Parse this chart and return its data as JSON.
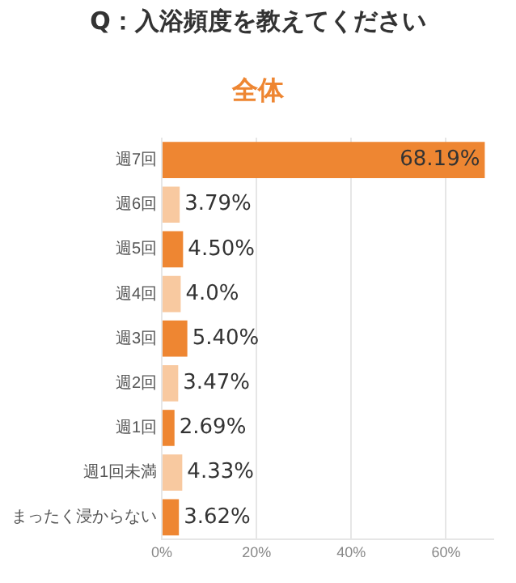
{
  "chart_data": {
    "type": "bar",
    "orientation": "horizontal",
    "title": "Q：入浴頻度を教えてください",
    "subtitle": "全体",
    "categories": [
      "週7回",
      "週6回",
      "週5回",
      "週4回",
      "週3回",
      "週2回",
      "週1回",
      "週1回未満",
      "まったく浸からない"
    ],
    "values": [
      68.19,
      3.79,
      4.5,
      4.0,
      5.4,
      3.47,
      2.69,
      4.33,
      3.62
    ],
    "colors": [
      "#ee8632",
      "#f8c9a0",
      "#ee8632",
      "#f8c9a0",
      "#ee8632",
      "#f8c9a0",
      "#ee8632",
      "#f8c9a0",
      "#ee8632"
    ],
    "value_labels": [
      "68.19%",
      "3.79%",
      "4.50%",
      "4.0%",
      "5.40%",
      "3.47%",
      "2.69%",
      "4.33%",
      "3.62%"
    ],
    "xlim": [
      0,
      70
    ],
    "xticks": [
      {
        "value": 0,
        "label": "0%"
      },
      {
        "value": 20,
        "label": "20%"
      },
      {
        "value": 40,
        "label": "40%"
      },
      {
        "value": 60,
        "label": "60%"
      }
    ],
    "grid": "x",
    "legend": false
  }
}
